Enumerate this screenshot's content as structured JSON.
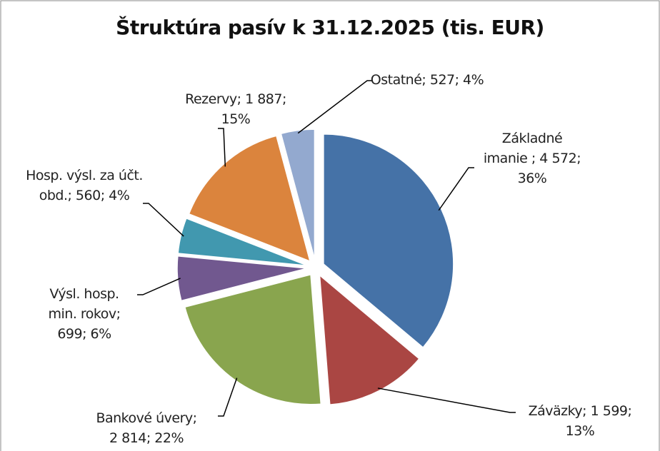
{
  "chart_data": {
    "type": "pie",
    "title": "Štruktúra pasív k 31.12.2025  (tis. EUR)",
    "values": [
      4572,
      1599,
      2814,
      699,
      560,
      1887,
      527
    ],
    "value_labels": [
      "Základné imanie ; 4 572; 36%",
      "Záväzky; 1 599; 13%",
      "Bankové úvery; 2 814; 22%",
      "Výsl. hosp. min. rokov; 699; 6%",
      "Hosp. výsl. za účt. obd.; 560; 4%",
      "Rezervy; 1 887; 15%",
      "Ostatné; 527; 4%"
    ],
    "colors": [
      "#4572a7",
      "#aa4643",
      "#89a54e",
      "#71588f",
      "#4198af",
      "#db843d",
      "#93a9cf"
    ]
  }
}
